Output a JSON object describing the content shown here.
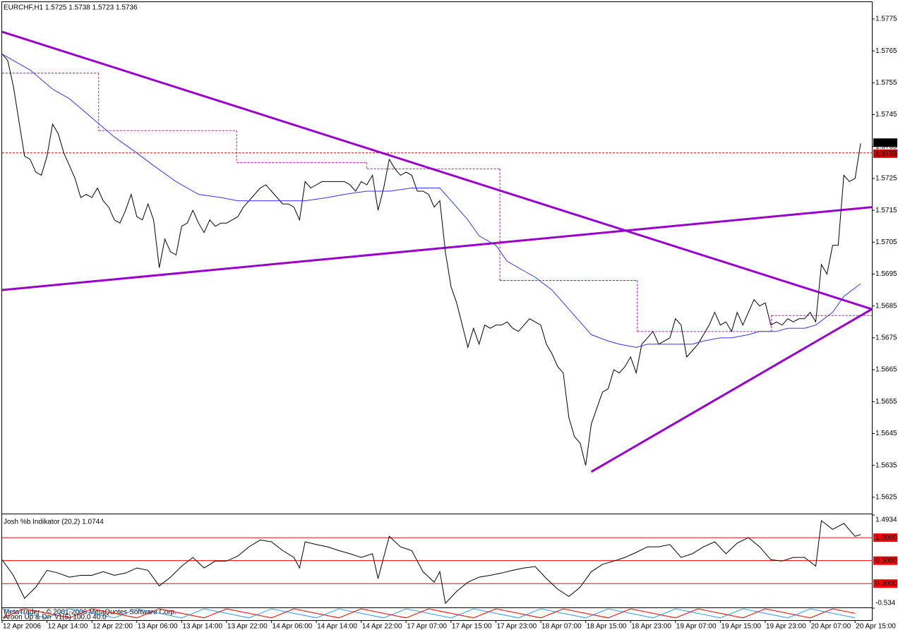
{
  "chart_data": [
    {
      "type": "line",
      "title": "EURCHF,H1  1.5725 1.5738 1.5723 1.5736",
      "xlim": [
        0,
        155
      ],
      "xticks": [
        {
          "value": 0,
          "label": "12 Apr 2006"
        },
        {
          "value": 8,
          "label": "12 Apr 14:00"
        },
        {
          "value": 16,
          "label": "12 Apr 22:00"
        },
        {
          "value": 24,
          "label": "13 Apr 06:00"
        },
        {
          "value": 32,
          "label": "13 Apr 14:00"
        },
        {
          "value": 40,
          "label": "13 Apr 22:00"
        },
        {
          "value": 48,
          "label": "14 Apr 06:00"
        },
        {
          "value": 56,
          "label": "14 Apr 14:00"
        },
        {
          "value": 64,
          "label": "14 Apr 22:00"
        },
        {
          "value": 72,
          "label": "17 Apr 07:00"
        },
        {
          "value": 80,
          "label": "17 Apr 15:00"
        },
        {
          "value": 88,
          "label": "17 Apr 23:00"
        },
        {
          "value": 96,
          "label": "18 Apr 07:00"
        },
        {
          "value": 104,
          "label": "18 Apr 15:00"
        },
        {
          "value": 112,
          "label": "18 Apr 23:00"
        },
        {
          "value": 120,
          "label": "19 Apr 07:00"
        },
        {
          "value": 128,
          "label": "19 Apr 15:00"
        },
        {
          "value": 136,
          "label": "19 Apr 23:00"
        },
        {
          "value": 144,
          "label": "20 Apr 07:00"
        },
        {
          "value": 152,
          "label": "20 Apr 15:00"
        }
      ],
      "ylim": [
        1.56201,
        1.57803
      ],
      "yticks": [
        1.5775,
        1.5765,
        1.5755,
        1.5745,
        1.5735,
        1.5725,
        1.5715,
        1.5705,
        1.5695,
        1.5685,
        1.5675,
        1.5665,
        1.5655,
        1.5645,
        1.5635,
        1.5625
      ],
      "series": [
        {
          "color": "#000000",
          "x": [
            0,
            1,
            2,
            3,
            4,
            5,
            6,
            7,
            8,
            9,
            10,
            11,
            12,
            13,
            14,
            15,
            16,
            17,
            18,
            19,
            20,
            21,
            22,
            23,
            24,
            25,
            26,
            27,
            28,
            29,
            30,
            31,
            32,
            33,
            34,
            35,
            36,
            37,
            38,
            39,
            40,
            41,
            42,
            43,
            44,
            45,
            46,
            47,
            48,
            49,
            50,
            51,
            52,
            53,
            54,
            55,
            56,
            57,
            58,
            59,
            60,
            61,
            62,
            63,
            64,
            65,
            66,
            67,
            68,
            69,
            70,
            71,
            72,
            73,
            74,
            75,
            76,
            77,
            78,
            79,
            80,
            81,
            82,
            83,
            84,
            85,
            86,
            87,
            88,
            89,
            90,
            91,
            92,
            93,
            94,
            95,
            96,
            97,
            98,
            99,
            100,
            101,
            102,
            103,
            104,
            105,
            106,
            107,
            108,
            109,
            110,
            111,
            112,
            113,
            114,
            115,
            116,
            117,
            118,
            119,
            120,
            121,
            122,
            123,
            124,
            125,
            126,
            127,
            128,
            129,
            130,
            131,
            132,
            133,
            134,
            135,
            136,
            137,
            138,
            139,
            140,
            141,
            142,
            143,
            144,
            145,
            146,
            147,
            148,
            149,
            150,
            151,
            152,
            153
          ],
          "values": [
            1.5764,
            1.5762,
            1.5754,
            1.5743,
            1.5732,
            1.5731,
            1.5727,
            1.5726,
            1.5732,
            1.5742,
            1.5739,
            1.5733,
            1.5729,
            1.5725,
            1.5719,
            1.572,
            1.5719,
            1.5722,
            1.5718,
            1.5716,
            1.5712,
            1.5711,
            1.5715,
            1.572,
            1.5713,
            1.5712,
            1.5717,
            1.5712,
            1.5697,
            1.5706,
            1.5702,
            1.5701,
            1.571,
            1.5711,
            1.5715,
            1.5711,
            1.5708,
            1.5712,
            1.571,
            1.5711,
            1.5711,
            1.5712,
            1.5713,
            1.5716,
            1.5718,
            1.572,
            1.5722,
            1.5723,
            1.5721,
            1.5719,
            1.5717,
            1.5717,
            1.5716,
            1.5712,
            1.5724,
            1.5722,
            1.5723,
            1.5724,
            1.5724,
            1.5724,
            1.5724,
            1.5724,
            1.5723,
            1.5721,
            1.5724,
            1.5723,
            1.5726,
            1.5715,
            1.5722,
            1.5731,
            1.5728,
            1.5726,
            1.5727,
            1.5726,
            1.5721,
            1.5721,
            1.572,
            1.5716,
            1.5718,
            1.5702,
            1.5691,
            1.5686,
            1.5679,
            1.5672,
            1.5678,
            1.5673,
            1.5679,
            1.5678,
            1.5679,
            1.5679,
            1.568,
            1.5678,
            1.5677,
            1.5679,
            1.5681,
            1.568,
            1.5679,
            1.5673,
            1.567,
            1.5666,
            1.5664,
            1.565,
            1.5644,
            1.5642,
            1.5635,
            1.5648,
            1.5653,
            1.5658,
            1.5659,
            1.5665,
            1.5664,
            1.5666,
            1.5669,
            1.5664,
            1.5673,
            1.5675,
            1.5677,
            1.5673,
            1.5674,
            1.5675,
            1.5681,
            1.5679,
            1.5669,
            1.5671,
            1.5673,
            1.5676,
            1.5679,
            1.5683,
            1.5679,
            1.568,
            1.5677,
            1.5683,
            1.5679,
            1.5683,
            1.5687,
            1.5685,
            1.5686,
            1.5679,
            1.568,
            1.5679,
            1.5681,
            1.568,
            1.5681,
            1.5681,
            1.5683,
            1.568,
            1.5698,
            1.5695,
            1.5704,
            1.5704,
            1.5726,
            1.5724,
            1.5725,
            1.5736
          ]
        },
        {
          "color": "#3333ff",
          "x": [
            0,
            5,
            9,
            12,
            16,
            20,
            24,
            27,
            31,
            35,
            39,
            42,
            46,
            50,
            54,
            58,
            61,
            65,
            69,
            73,
            76,
            78,
            80,
            83,
            85,
            88,
            90,
            93,
            95,
            98,
            100,
            103,
            105,
            108,
            110,
            113,
            115,
            118,
            120,
            123,
            125,
            128,
            130,
            133,
            135,
            138,
            140,
            143,
            145,
            148,
            150,
            153
          ],
          "values": [
            1.5764,
            1.5759,
            1.5753,
            1.575,
            1.5744,
            1.5738,
            1.5733,
            1.5729,
            1.5724,
            1.572,
            1.5719,
            1.5718,
            1.5718,
            1.5718,
            1.5718,
            1.5719,
            1.572,
            1.5721,
            1.5721,
            1.5722,
            1.5722,
            1.5722,
            1.5718,
            1.5712,
            1.5707,
            1.5704,
            1.5699,
            1.5696,
            1.5694,
            1.569,
            1.5686,
            1.568,
            1.5676,
            1.5674,
            1.5673,
            1.5672,
            1.5673,
            1.5673,
            1.5673,
            1.5673,
            1.5674,
            1.5675,
            1.5675,
            1.5676,
            1.5677,
            1.5677,
            1.5678,
            1.5678,
            1.5679,
            1.5683,
            1.5688,
            1.5692
          ]
        }
      ],
      "trendlines": [
        {
          "color": "#9900cc",
          "x": [
            0,
            155
          ],
          "values": [
            1.5771,
            1.5684
          ]
        },
        {
          "color": "#9900cc",
          "x": [
            0,
            155
          ],
          "values": [
            1.569,
            1.5716
          ]
        },
        {
          "color": "#9900cc",
          "x": [
            105,
            155
          ],
          "values": [
            1.5633,
            1.5684
          ]
        }
      ],
      "steps": {
        "color": "#cc00cc",
        "segments": [
          {
            "x": [
              0,
              17.2
            ],
            "value": 1.5758
          },
          {
            "x": [
              17.2,
              41.8
            ],
            "value": 1.574
          },
          {
            "x": [
              41.8,
              65
            ],
            "value": 1.573
          },
          {
            "x": [
              65,
              88.7
            ],
            "value": 1.5728
          },
          {
            "x": [
              88.7,
              113.2
            ],
            "value": 1.5693
          },
          {
            "x": [
              113.2,
              137.1
            ],
            "value": 1.5677
          },
          {
            "x": [
              137.1,
              155
            ],
            "value": 1.5682
          }
        ]
      },
      "price_labels": [
        {
          "value": 1.5736,
          "color": "#000000"
        },
        {
          "value": 1.5733,
          "color": "#cc0000",
          "line": true
        }
      ]
    },
    {
      "type": "line",
      "title": "Josh %b Indikator (20,2) 1.0744",
      "ylim": [
        -0.534,
        1.4934
      ],
      "yticks": [
        1.4934,
        -0.534
      ],
      "levels": {
        "color": "#ff0000",
        "ticks": [
          {
            "value": 1,
            "label": "1.0000"
          },
          {
            "value": 0.5,
            "label": "0.5000"
          },
          {
            "value": 0,
            "label": "0.0000"
          }
        ]
      },
      "series": [
        {
          "color": "#000000",
          "x": [
            0,
            2,
            4,
            6,
            8,
            10,
            12,
            14,
            16,
            18,
            20,
            22,
            24,
            26,
            28,
            30,
            32,
            34,
            36,
            38,
            40,
            42,
            44,
            46,
            48,
            50,
            52,
            53,
            54,
            56,
            58,
            60,
            62,
            64,
            66,
            67,
            69,
            71,
            73,
            75,
            77,
            78,
            79,
            81,
            83,
            85,
            87,
            89,
            91,
            93,
            95,
            97,
            99,
            101,
            103,
            105,
            107,
            109,
            111,
            113,
            115,
            117,
            119,
            121,
            123,
            125,
            127,
            129,
            131,
            133,
            135,
            137,
            139,
            141,
            143,
            145,
            146,
            148,
            150,
            152,
            153
          ],
          "values": [
            0.52,
            0.18,
            -0.32,
            -0.08,
            0.29,
            0.23,
            0.14,
            0.18,
            0.18,
            0.26,
            0.18,
            0.23,
            0.34,
            0.29,
            -0.05,
            0.14,
            0.38,
            0.57,
            0.34,
            0.49,
            0.49,
            0.6,
            0.8,
            0.95,
            0.91,
            0.72,
            0.57,
            0.34,
            0.91,
            0.85,
            0.8,
            0.72,
            0.65,
            0.57,
            0.65,
            0.11,
            1.03,
            0.8,
            0.72,
            0.26,
            0.03,
            0.26,
            -0.43,
            -0.17,
            0.03,
            0.14,
            0.18,
            0.23,
            0.29,
            0.34,
            0.37,
            0.11,
            -0.12,
            -0.28,
            -0.08,
            0.26,
            0.42,
            0.49,
            0.57,
            0.68,
            0.8,
            0.8,
            0.85,
            0.57,
            0.65,
            0.8,
            0.91,
            0.65,
            0.88,
            1.0,
            0.8,
            0.52,
            0.49,
            0.57,
            0.57,
            0.38,
            1.37,
            1.18,
            1.31,
            1.03,
            1.07
          ]
        }
      ]
    },
    {
      "type": "line",
      "title": "Aroon Up & Dn_v1(5) 100.0 40.0",
      "ylim": [
        0,
        100
      ],
      "series": [
        {
          "color": "#3399ff",
          "x": [
            0,
            4,
            8,
            12,
            16,
            20,
            24,
            28,
            32,
            36,
            40,
            44,
            48,
            52,
            56,
            60,
            64,
            68,
            72,
            76,
            80,
            84,
            88,
            92,
            96,
            100,
            104,
            108,
            112,
            116,
            120,
            124,
            128,
            132,
            136,
            140,
            144,
            148,
            152
          ],
          "values": [
            100,
            60,
            20,
            100,
            60,
            20,
            100,
            60,
            20,
            100,
            60,
            20,
            100,
            60,
            20,
            100,
            60,
            20,
            100,
            60,
            20,
            100,
            60,
            20,
            100,
            60,
            20,
            100,
            60,
            20,
            100,
            60,
            20,
            100,
            60,
            20,
            100,
            60,
            20
          ]
        },
        {
          "color": "#ff0000",
          "x": [
            0,
            4,
            8,
            12,
            16,
            20,
            24,
            28,
            32,
            36,
            40,
            44,
            48,
            52,
            56,
            60,
            64,
            68,
            72,
            76,
            80,
            84,
            88,
            92,
            96,
            100,
            104,
            108,
            112,
            116,
            120,
            124,
            128,
            132,
            136,
            140,
            144,
            148,
            152
          ],
          "values": [
            20,
            100,
            60,
            20,
            100,
            60,
            20,
            100,
            60,
            20,
            100,
            60,
            20,
            100,
            60,
            20,
            100,
            60,
            20,
            100,
            60,
            20,
            100,
            60,
            20,
            100,
            60,
            20,
            100,
            60,
            20,
            100,
            60,
            20,
            100,
            60,
            20,
            100,
            60
          ]
        }
      ]
    }
  ],
  "footer": "MetaTrader - © 2001-2006 MetaQuotes Software Corp."
}
